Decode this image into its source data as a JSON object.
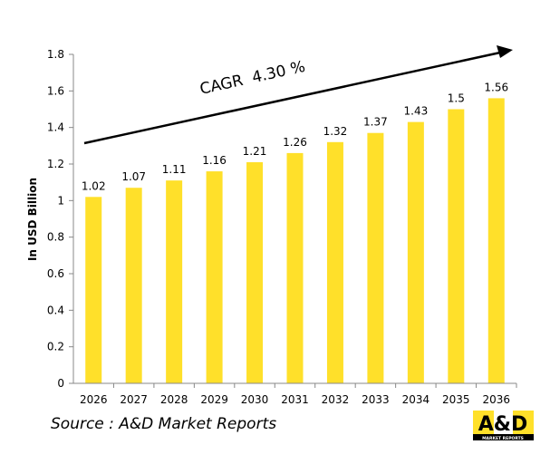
{
  "chart_data": {
    "type": "bar",
    "categories": [
      "2026",
      "2027",
      "2028",
      "2029",
      "2030",
      "2031",
      "2032",
      "2033",
      "2034",
      "2035",
      "2036"
    ],
    "values": [
      1.02,
      1.07,
      1.11,
      1.16,
      1.21,
      1.26,
      1.32,
      1.37,
      1.43,
      1.5,
      1.56
    ],
    "data_labels": [
      "1.02",
      "1.07",
      "1.11",
      "1.16",
      "1.21",
      "1.26",
      "1.32",
      "1.37",
      "1.43",
      "1.5",
      "1.56"
    ],
    "ylabel": "In USD Billion",
    "xlabel": "",
    "ylim": [
      0,
      1.8
    ],
    "yticks": [
      "0",
      "0.2",
      "0.4",
      "0.6",
      "0.8",
      "1",
      "1.2",
      "1.4",
      "1.6",
      "1.8"
    ],
    "grid": false,
    "bar_color": "#FFE02A",
    "annotation": "CAGR  4.30 %"
  },
  "source": "Source : A&D Market Reports",
  "logo": {
    "text": "A&D",
    "subtext": "MARKET REPORTS",
    "color": "#FFE02A"
  }
}
